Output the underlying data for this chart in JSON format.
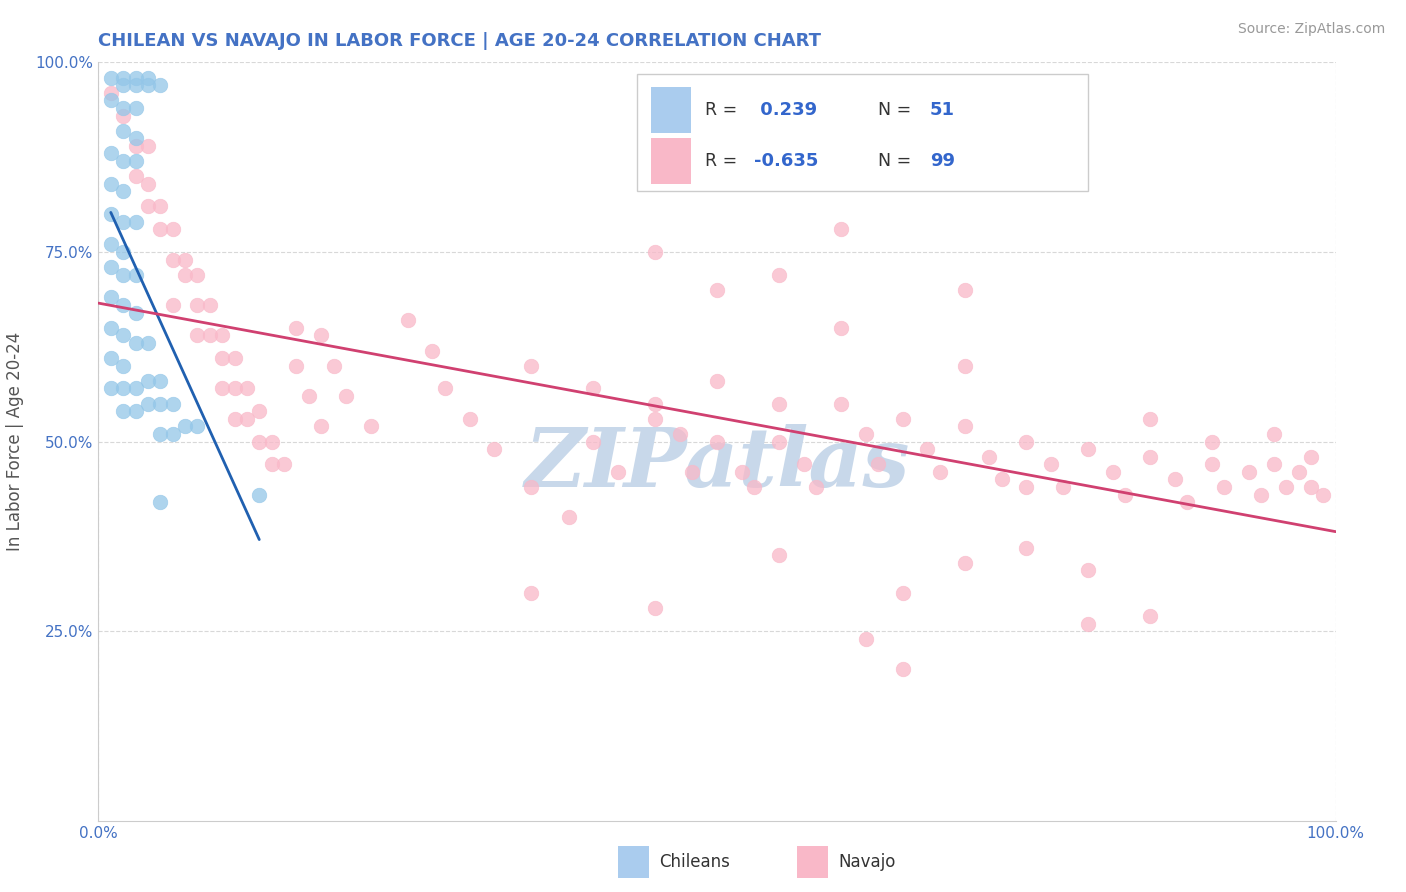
{
  "title": "CHILEAN VS NAVAJO IN LABOR FORCE | AGE 20-24 CORRELATION CHART",
  "source_text": "Source: ZipAtlas.com",
  "ylabel": "In Labor Force | Age 20-24",
  "xlim": [
    0.0,
    1.0
  ],
  "ylim": [
    0.0,
    1.0
  ],
  "ytick_positions": [
    0.25,
    0.5,
    0.75,
    1.0
  ],
  "ytick_labels": [
    "25.0%",
    "50.0%",
    "75.0%",
    "100.0%"
  ],
  "chilean_color": "#93c6e8",
  "navajo_color": "#f9b8c8",
  "chilean_line_color": "#2060b0",
  "navajo_line_color": "#d04070",
  "watermark_color": "#c8d8ea",
  "grid_color": "#d8d8d8",
  "bg_color": "#ffffff",
  "title_color": "#4472c4",
  "source_color": "#999999",
  "axis_tick_color": "#4472c4",
  "ylabel_color": "#555555",
  "chilean_scatter": [
    [
      0.01,
      0.98
    ],
    [
      0.02,
      0.98
    ],
    [
      0.02,
      0.97
    ],
    [
      0.03,
      0.98
    ],
    [
      0.03,
      0.97
    ],
    [
      0.04,
      0.98
    ],
    [
      0.04,
      0.97
    ],
    [
      0.05,
      0.97
    ],
    [
      0.01,
      0.95
    ],
    [
      0.02,
      0.94
    ],
    [
      0.03,
      0.94
    ],
    [
      0.02,
      0.91
    ],
    [
      0.03,
      0.9
    ],
    [
      0.01,
      0.88
    ],
    [
      0.02,
      0.87
    ],
    [
      0.03,
      0.87
    ],
    [
      0.01,
      0.84
    ],
    [
      0.02,
      0.83
    ],
    [
      0.01,
      0.8
    ],
    [
      0.02,
      0.79
    ],
    [
      0.03,
      0.79
    ],
    [
      0.01,
      0.76
    ],
    [
      0.02,
      0.75
    ],
    [
      0.01,
      0.73
    ],
    [
      0.02,
      0.72
    ],
    [
      0.03,
      0.72
    ],
    [
      0.01,
      0.69
    ],
    [
      0.02,
      0.68
    ],
    [
      0.03,
      0.67
    ],
    [
      0.01,
      0.65
    ],
    [
      0.02,
      0.64
    ],
    [
      0.01,
      0.61
    ],
    [
      0.02,
      0.6
    ],
    [
      0.03,
      0.63
    ],
    [
      0.04,
      0.63
    ],
    [
      0.01,
      0.57
    ],
    [
      0.02,
      0.57
    ],
    [
      0.03,
      0.57
    ],
    [
      0.04,
      0.58
    ],
    [
      0.05,
      0.58
    ],
    [
      0.02,
      0.54
    ],
    [
      0.03,
      0.54
    ],
    [
      0.04,
      0.55
    ],
    [
      0.05,
      0.55
    ],
    [
      0.06,
      0.55
    ],
    [
      0.05,
      0.51
    ],
    [
      0.06,
      0.51
    ],
    [
      0.07,
      0.52
    ],
    [
      0.08,
      0.52
    ],
    [
      0.05,
      0.42
    ],
    [
      0.13,
      0.43
    ]
  ],
  "navajo_scatter": [
    [
      0.01,
      0.96
    ],
    [
      0.02,
      0.93
    ],
    [
      0.03,
      0.89
    ],
    [
      0.04,
      0.89
    ],
    [
      0.03,
      0.85
    ],
    [
      0.04,
      0.84
    ],
    [
      0.04,
      0.81
    ],
    [
      0.05,
      0.81
    ],
    [
      0.05,
      0.78
    ],
    [
      0.06,
      0.78
    ],
    [
      0.06,
      0.74
    ],
    [
      0.07,
      0.74
    ],
    [
      0.07,
      0.72
    ],
    [
      0.08,
      0.72
    ],
    [
      0.06,
      0.68
    ],
    [
      0.08,
      0.68
    ],
    [
      0.09,
      0.68
    ],
    [
      0.08,
      0.64
    ],
    [
      0.09,
      0.64
    ],
    [
      0.1,
      0.64
    ],
    [
      0.1,
      0.61
    ],
    [
      0.11,
      0.61
    ],
    [
      0.1,
      0.57
    ],
    [
      0.11,
      0.57
    ],
    [
      0.12,
      0.57
    ],
    [
      0.11,
      0.53
    ],
    [
      0.12,
      0.53
    ],
    [
      0.13,
      0.54
    ],
    [
      0.13,
      0.5
    ],
    [
      0.14,
      0.5
    ],
    [
      0.14,
      0.47
    ],
    [
      0.15,
      0.47
    ],
    [
      0.16,
      0.65
    ],
    [
      0.18,
      0.64
    ],
    [
      0.16,
      0.6
    ],
    [
      0.19,
      0.6
    ],
    [
      0.17,
      0.56
    ],
    [
      0.2,
      0.56
    ],
    [
      0.18,
      0.52
    ],
    [
      0.22,
      0.52
    ],
    [
      0.25,
      0.66
    ],
    [
      0.27,
      0.62
    ],
    [
      0.28,
      0.57
    ],
    [
      0.3,
      0.53
    ],
    [
      0.32,
      0.49
    ],
    [
      0.35,
      0.44
    ],
    [
      0.38,
      0.4
    ],
    [
      0.4,
      0.5
    ],
    [
      0.42,
      0.46
    ],
    [
      0.45,
      0.55
    ],
    [
      0.47,
      0.51
    ],
    [
      0.48,
      0.46
    ],
    [
      0.5,
      0.5
    ],
    [
      0.52,
      0.46
    ],
    [
      0.53,
      0.44
    ],
    [
      0.55,
      0.5
    ],
    [
      0.57,
      0.47
    ],
    [
      0.58,
      0.44
    ],
    [
      0.6,
      0.55
    ],
    [
      0.62,
      0.51
    ],
    [
      0.63,
      0.47
    ],
    [
      0.65,
      0.53
    ],
    [
      0.67,
      0.49
    ],
    [
      0.68,
      0.46
    ],
    [
      0.7,
      0.52
    ],
    [
      0.72,
      0.48
    ],
    [
      0.73,
      0.45
    ],
    [
      0.75,
      0.5
    ],
    [
      0.77,
      0.47
    ],
    [
      0.78,
      0.44
    ],
    [
      0.8,
      0.49
    ],
    [
      0.82,
      0.46
    ],
    [
      0.83,
      0.43
    ],
    [
      0.85,
      0.48
    ],
    [
      0.87,
      0.45
    ],
    [
      0.88,
      0.42
    ],
    [
      0.9,
      0.47
    ],
    [
      0.91,
      0.44
    ],
    [
      0.93,
      0.46
    ],
    [
      0.94,
      0.43
    ],
    [
      0.95,
      0.47
    ],
    [
      0.96,
      0.44
    ],
    [
      0.97,
      0.46
    ],
    [
      0.98,
      0.44
    ],
    [
      0.99,
      0.43
    ],
    [
      0.6,
      0.78
    ],
    [
      0.55,
      0.72
    ],
    [
      0.7,
      0.7
    ],
    [
      0.45,
      0.75
    ],
    [
      0.5,
      0.7
    ],
    [
      0.6,
      0.65
    ],
    [
      0.7,
      0.6
    ],
    [
      0.5,
      0.58
    ],
    [
      0.55,
      0.55
    ],
    [
      0.4,
      0.57
    ],
    [
      0.45,
      0.53
    ],
    [
      0.35,
      0.6
    ],
    [
      0.35,
      0.3
    ],
    [
      0.45,
      0.28
    ],
    [
      0.55,
      0.35
    ],
    [
      0.65,
      0.3
    ],
    [
      0.7,
      0.34
    ],
    [
      0.75,
      0.36
    ],
    [
      0.8,
      0.33
    ],
    [
      0.85,
      0.27
    ],
    [
      0.62,
      0.24
    ],
    [
      0.65,
      0.2
    ],
    [
      0.8,
      0.26
    ],
    [
      0.75,
      0.44
    ],
    [
      0.85,
      0.53
    ],
    [
      0.9,
      0.5
    ],
    [
      0.95,
      0.51
    ],
    [
      0.98,
      0.48
    ]
  ]
}
